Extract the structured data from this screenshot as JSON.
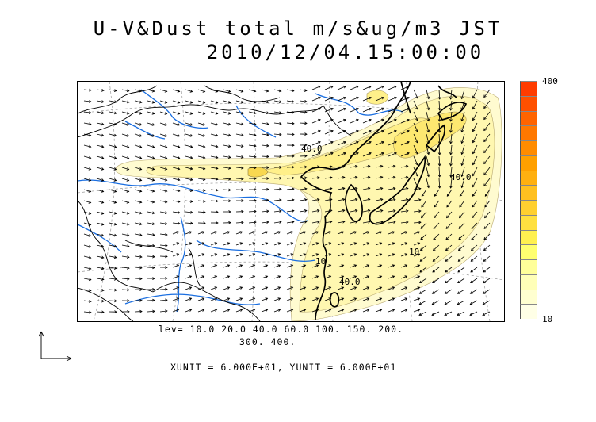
{
  "title": {
    "line1": "U-V&Dust total m/s&ug/m3 JST",
    "line2": "2010/12/04.15:00:00"
  },
  "colorbar": {
    "max_label": "400",
    "min_label": "10",
    "colors": [
      "#ffffe6",
      "#ffffd0",
      "#ffffb8",
      "#ffff9a",
      "#ffff70",
      "#fff050",
      "#ffe040",
      "#ffd030",
      "#ffc020",
      "#ffb010",
      "#ffa000",
      "#ff8c00",
      "#ff7800",
      "#ff6400",
      "#ff5000",
      "#ff3c00"
    ]
  },
  "contour_levels": {
    "line1": "lev= 10.0 20.0 40.0 60.0 100. 150. 200.",
    "line2": "300. 400.",
    "map_labels": [
      "40.0",
      "40.0",
      "40.0",
      "10",
      "10"
    ]
  },
  "vector_units": "XUNIT = 6.000E+01, YUNIT = 6.000E+01",
  "colors": {
    "dust_light": "#fffbd0",
    "dust_mid": "#fff59a",
    "dust_strong": "#fde870",
    "river": "#1a6ee0",
    "coast": "#000000"
  }
}
